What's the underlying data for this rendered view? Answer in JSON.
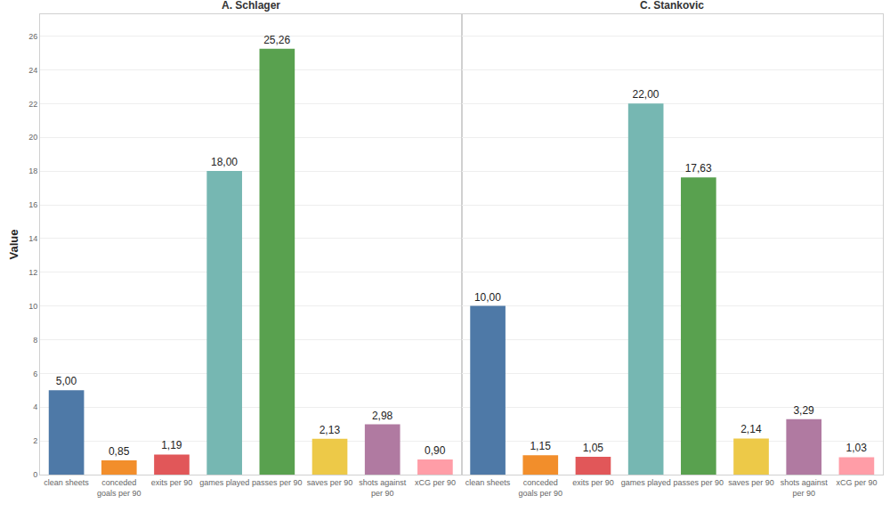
{
  "chart_data": [
    {
      "type": "bar",
      "title": "A. Schlager",
      "y_label": "Value",
      "categories": [
        "clean sheets",
        "conceded goals per 90",
        "exits per 90",
        "games played",
        "passes per 90",
        "saves per 90",
        "shots against per 90",
        "xCG per 90"
      ],
      "values": [
        5.0,
        0.85,
        1.19,
        18.0,
        25.26,
        2.13,
        2.98,
        0.9
      ],
      "value_labels": [
        "5,00",
        "0,85",
        "1,19",
        "18,00",
        "25,26",
        "2,13",
        "2,98",
        "0,90"
      ],
      "colors": [
        "#4e79a7",
        "#f28e2b",
        "#e15759",
        "#76b7b2",
        "#59a14f",
        "#edc948",
        "#b07aa1",
        "#ff9da7"
      ],
      "ylim": [
        0,
        27.3
      ],
      "yticks": [
        0,
        2,
        4,
        6,
        8,
        10,
        12,
        14,
        16,
        18,
        20,
        22,
        24,
        26
      ],
      "grid": true,
      "data_labels": true
    },
    {
      "type": "bar",
      "title": "C. Stankovic",
      "categories": [
        "clean sheets",
        "conceded goals per 90",
        "exits per 90",
        "games played",
        "passes per 90",
        "saves per 90",
        "shots against per 90",
        "xCG per 90"
      ],
      "values": [
        10.0,
        1.15,
        1.05,
        22.0,
        17.63,
        2.14,
        3.29,
        1.03
      ],
      "value_labels": [
        "10,00",
        "1,15",
        "1,05",
        "22,00",
        "17,63",
        "2,14",
        "3,29",
        "1,03"
      ],
      "colors": [
        "#4e79a7",
        "#f28e2b",
        "#e15759",
        "#76b7b2",
        "#59a14f",
        "#edc948",
        "#b07aa1",
        "#ff9da7"
      ],
      "ylim": [
        0,
        27.3
      ],
      "yticks": [
        0,
        2,
        4,
        6,
        8,
        10,
        12,
        14,
        16,
        18,
        20,
        22,
        24,
        26
      ],
      "grid": true,
      "data_labels": true,
      "tick_labels": "x"
    }
  ]
}
